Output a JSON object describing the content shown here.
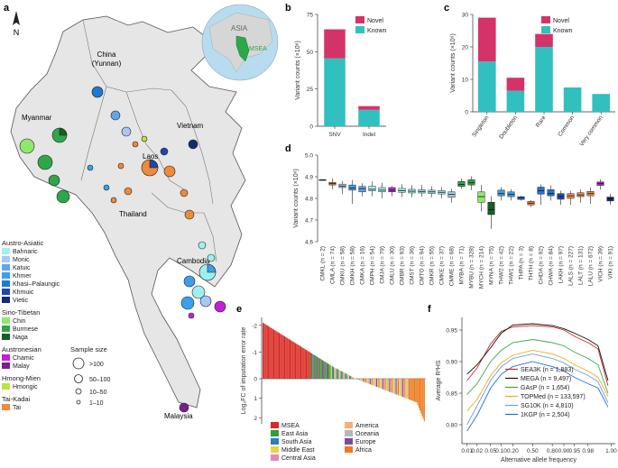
{
  "figure": {
    "panel_labels": [
      "a",
      "b",
      "c",
      "d",
      "e",
      "f"
    ],
    "map": {
      "compass": "N",
      "country_labels": [
        "China (Yunnan)",
        "Myanmar",
        "Vietnam",
        "Laos",
        "Thailand",
        "Cambodia",
        "Malaysia"
      ],
      "globe_labels": [
        "ASIA",
        "MSEA"
      ],
      "legend_groups": [
        {
          "family": "Austro-Asiatic",
          "items": [
            {
              "label": "Bahnaric",
              "color": "#9ef0ee"
            },
            {
              "label": "Monic",
              "color": "#a8c8f0"
            },
            {
              "label": "Katuic",
              "color": "#5fa6e8"
            },
            {
              "label": "Khmer",
              "color": "#3aa0ea"
            },
            {
              "label": "Khasi–Palaungic",
              "color": "#1f78d1"
            },
            {
              "label": "Khmuic",
              "color": "#2246a8"
            },
            {
              "label": "Vietic",
              "color": "#162a72"
            }
          ]
        },
        {
          "family": "Sino-Tibetan",
          "items": [
            {
              "label": "Chin",
              "color": "#8ee86e"
            },
            {
              "label": "Burmese",
              "color": "#2ea64a"
            },
            {
              "label": "Naga",
              "color": "#175e24"
            }
          ]
        },
        {
          "family": "Austronesian",
          "items": [
            {
              "label": "Chamic",
              "color": "#c020d8"
            },
            {
              "label": "Malay",
              "color": "#7a1f8e"
            }
          ]
        },
        {
          "family": "Hmong-Mien",
          "items": [
            {
              "label": "Hmongic",
              "color": "#b9e63a"
            }
          ]
        },
        {
          "family": "Tai-Kadai",
          "items": [
            {
              "label": "Tai",
              "color": "#ee8a3a"
            }
          ]
        }
      ],
      "sample_size_title": "Sample size",
      "sample_size_labels": [
        ">100",
        "50–100",
        "10–50",
        "1–10"
      ]
    }
  },
  "chart_data": [
    {
      "panel": "b",
      "type": "bar",
      "stacked": true,
      "categories": [
        "SNV",
        "Indel"
      ],
      "series": [
        {
          "name": "Known",
          "color": "#31c0c0",
          "values": [
            45.5,
            11
          ]
        },
        {
          "name": "Novel",
          "color": "#d4336a",
          "values": [
            19.5,
            2.5
          ]
        }
      ],
      "ylabel": "Variant counts (×10⁶)",
      "ylim": [
        0,
        75
      ],
      "yticks": [
        0,
        25,
        50,
        75
      ]
    },
    {
      "panel": "c",
      "type": "bar",
      "stacked": true,
      "categories": [
        "Singleton",
        "Doubleton",
        "Rare",
        "Common",
        "Very common"
      ],
      "series": [
        {
          "name": "Known",
          "color": "#31c0c0",
          "values": [
            15.5,
            6.5,
            20,
            7.5,
            5.5
          ]
        },
        {
          "name": "Novel",
          "color": "#d4336a",
          "values": [
            13.5,
            4,
            4,
            0,
            0
          ]
        }
      ],
      "ylabel": "Variant counts (×10⁶)",
      "ylim": [
        0,
        30
      ],
      "yticks": [
        0,
        10,
        20,
        30
      ]
    },
    {
      "panel": "d",
      "type": "box",
      "ylabel": "Variant counts (×10⁶)",
      "ylim": [
        4.6,
        5.0
      ],
      "yticks": [
        4.6,
        4.7,
        4.8,
        4.9,
        5.0
      ],
      "groups": [
        {
          "label": "CMKL (n = 2)",
          "color": "#b9e63a",
          "q1": 4.883,
          "med": 4.885,
          "q3": 4.887,
          "lo": 4.882,
          "hi": 4.888
        },
        {
          "label": "CMLA (n = 74)",
          "color": "#ee8a3a",
          "q1": 4.862,
          "med": 4.868,
          "q3": 4.874,
          "lo": 4.842,
          "hi": 4.892
        },
        {
          "label": "CMKU (n = 58)",
          "color": "#a8c8f0",
          "q1": 4.85,
          "med": 4.857,
          "q3": 4.866,
          "lo": 4.82,
          "hi": 4.88
        },
        {
          "label": "CMKH (n = 58)",
          "color": "#3aa0ea",
          "q1": 4.838,
          "med": 4.848,
          "q3": 4.862,
          "lo": 4.775,
          "hi": 4.885
        },
        {
          "label": "CMKA (n = 16)",
          "color": "#5fa6e8",
          "q1": 4.83,
          "med": 4.845,
          "q3": 4.855,
          "lo": 4.81,
          "hi": 4.87
        },
        {
          "label": "CMPH (n = 54)",
          "color": "#9ef0ee",
          "q1": 4.835,
          "med": 4.842,
          "q3": 4.856,
          "lo": 4.81,
          "hi": 4.878
        },
        {
          "label": "CMJA (n = 79)",
          "color": "#9ef0ee",
          "q1": 4.83,
          "med": 4.838,
          "q3": 4.85,
          "lo": 4.8,
          "hi": 4.872
        },
        {
          "label": "CMLU (n = 30)",
          "color": "#c020d8",
          "q1": 4.83,
          "med": 4.838,
          "q3": 4.85,
          "lo": 4.81,
          "hi": 4.858
        },
        {
          "label": "CMBR (n = 93)",
          "color": "#9ef0ee",
          "q1": 4.828,
          "med": 4.835,
          "q3": 4.846,
          "lo": 4.805,
          "hi": 4.866
        },
        {
          "label": "CMST (n = 36)",
          "color": "#9ef0ee",
          "q1": 4.825,
          "med": 4.833,
          "q3": 4.842,
          "lo": 4.805,
          "hi": 4.862
        },
        {
          "label": "CMTO (n = 94)",
          "color": "#9ef0ee",
          "q1": 4.825,
          "med": 4.832,
          "q3": 4.84,
          "lo": 4.808,
          "hi": 4.862
        },
        {
          "label": "CMKR (n = 55)",
          "color": "#9ef0ee",
          "q1": 4.822,
          "med": 4.83,
          "q3": 4.838,
          "lo": 4.805,
          "hi": 4.856
        },
        {
          "label": "CMKE (n = 37)",
          "color": "#9ef0ee",
          "q1": 4.82,
          "med": 4.828,
          "q3": 4.836,
          "lo": 4.8,
          "hi": 4.852
        },
        {
          "label": "CMME (n = 68)",
          "color": "#a8c8f0",
          "q1": 4.805,
          "med": 4.818,
          "q3": 4.83,
          "lo": 4.78,
          "hi": 4.845
        },
        {
          "label": "MYBA (n = 71)",
          "color": "#2ea64a",
          "q1": 4.855,
          "med": 4.865,
          "q3": 4.878,
          "lo": 4.845,
          "hi": 4.892
        },
        {
          "label": "MYBU (n = 328)",
          "color": "#2ea64a",
          "q1": 4.862,
          "med": 4.872,
          "q3": 4.886,
          "lo": 4.838,
          "hi": 4.902
        },
        {
          "label": "MYCH (n = 214)",
          "color": "#8ee86e",
          "q1": 4.782,
          "med": 4.808,
          "q3": 4.83,
          "lo": 4.74,
          "hi": 4.862
        },
        {
          "label": "MYNA (n = 75)",
          "color": "#175e24",
          "q1": 4.725,
          "med": 4.748,
          "q3": 4.782,
          "lo": 4.66,
          "hi": 4.81
        },
        {
          "label": "THW2 (n = 42)",
          "color": "#3aa0ea",
          "q1": 4.812,
          "med": 4.822,
          "q3": 4.838,
          "lo": 4.79,
          "hi": 4.852
        },
        {
          "label": "THW1 (n = 22)",
          "color": "#3aa0ea",
          "q1": 4.808,
          "med": 4.818,
          "q3": 4.83,
          "lo": 4.79,
          "hi": 4.842
        },
        {
          "label": "THPA (n = 3)",
          "color": "#1f78d1",
          "q1": 4.795,
          "med": 4.802,
          "q3": 4.808,
          "lo": 4.79,
          "hi": 4.812
        },
        {
          "label": "THTH (n = 8)",
          "color": "#ee8a3a",
          "q1": 4.77,
          "med": 4.778,
          "q3": 4.786,
          "lo": 4.76,
          "hi": 4.792
        },
        {
          "label": "CHDA (n = 92)",
          "color": "#1f78d1",
          "q1": 4.82,
          "med": 4.835,
          "q3": 4.852,
          "lo": 4.77,
          "hi": 4.865
        },
        {
          "label": "CHWA (n = 84)",
          "color": "#1f78d1",
          "q1": 4.812,
          "med": 4.822,
          "q3": 4.84,
          "lo": 4.79,
          "hi": 4.86
        },
        {
          "label": "LAKH (n = 97)",
          "color": "#2246a8",
          "q1": 4.796,
          "med": 4.808,
          "q3": 4.822,
          "lo": 4.77,
          "hi": 4.836
        },
        {
          "label": "LALS (n = 227)",
          "color": "#ee8a3a",
          "q1": 4.8,
          "med": 4.812,
          "q3": 4.822,
          "lo": 4.77,
          "hi": 4.835
        },
        {
          "label": "LALT (n = 131)",
          "color": "#ee8a3a",
          "q1": 4.808,
          "med": 4.816,
          "q3": 4.826,
          "lo": 4.78,
          "hi": 4.842
        },
        {
          "label": "LALU (n = 672)",
          "color": "#ee8a3a",
          "q1": 4.812,
          "med": 4.822,
          "q3": 4.832,
          "lo": 4.775,
          "hi": 4.85
        },
        {
          "label": "VICH (n = 39)",
          "color": "#c020d8",
          "q1": 4.86,
          "med": 4.868,
          "q3": 4.876,
          "lo": 4.84,
          "hi": 4.888
        },
        {
          "label": "VIKI (n = 91)",
          "color": "#162a72",
          "q1": 4.788,
          "med": 4.798,
          "q3": 4.806,
          "lo": 4.77,
          "hi": 4.822
        }
      ]
    },
    {
      "panel": "e",
      "type": "bar",
      "ylabel": "Log₂FC of imputation error rate",
      "ylim": [
        2.3,
        -2.3
      ],
      "yticks_top": [
        -2,
        -1,
        0
      ],
      "yticks_bottom": [
        1,
        2
      ],
      "legend": [
        {
          "label": "MSEA",
          "color": "#d72a22"
        },
        {
          "label": "East Asia",
          "color": "#2f9d3a"
        },
        {
          "label": "South Asia",
          "color": "#2a7fbf"
        },
        {
          "label": "Middle East",
          "color": "#e8d340"
        },
        {
          "label": "Central Asia",
          "color": "#e58ab8"
        },
        {
          "label": "America",
          "color": "#f4b07a"
        },
        {
          "label": "Oceania",
          "color": "#b6b6b6"
        },
        {
          "label": "Europe",
          "color": "#7a4b9e"
        },
        {
          "label": "Africa",
          "color": "#ee7a1c"
        }
      ]
    },
    {
      "panel": "f",
      "type": "line",
      "xlabel": "Alternative allele frequency",
      "ylabel": "Average R²HS",
      "xscale": "logit",
      "x": [
        0.01,
        0.02,
        0.05,
        0.1,
        0.2,
        0.5,
        0.8,
        0.9,
        0.95,
        0.98,
        0.99,
        0.995
      ],
      "xticks": [
        0.01,
        0.02,
        0.05,
        0.1,
        0.2,
        0.5,
        0.8,
        0.9,
        0.95,
        0.98,
        1.0
      ],
      "xtick_labels": [
        "0.01",
        "0.02",
        "0.05",
        "0.10",
        "0.20",
        "0.50",
        "0.80",
        "0.90",
        "0.95",
        "0.98",
        "1.00"
      ],
      "ylim": [
        0.77,
        0.97
      ],
      "yticks": [
        0.8,
        0.85,
        0.9,
        0.95
      ],
      "series": [
        {
          "name": "SEA3K (n = 1,883)",
          "color": "#cc2b2b",
          "values": [
            0.87,
            0.89,
            0.928,
            0.948,
            0.955,
            0.957,
            0.955,
            0.95,
            0.94,
            0.93,
            0.92,
            0.862
          ]
        },
        {
          "name": "MEGA (n = 9,497)",
          "color": "#111111",
          "values": [
            0.88,
            0.895,
            0.922,
            0.945,
            0.958,
            0.96,
            0.957,
            0.952,
            0.945,
            0.935,
            0.925,
            0.87
          ]
        },
        {
          "name": "GAsP (n = 1,654)",
          "color": "#3aa84a",
          "values": [
            0.848,
            0.865,
            0.9,
            0.918,
            0.93,
            0.935,
            0.93,
            0.925,
            0.915,
            0.905,
            0.895,
            0.85
          ]
        },
        {
          "name": "TOPMed (n = 133,597)",
          "color": "#e8b020",
          "values": [
            0.822,
            0.84,
            0.878,
            0.898,
            0.91,
            0.918,
            0.912,
            0.905,
            0.895,
            0.885,
            0.875,
            0.845
          ]
        },
        {
          "name": "SG10K (n = 4,810)",
          "color": "#6aa0e0",
          "values": [
            0.8,
            0.83,
            0.87,
            0.892,
            0.905,
            0.912,
            0.905,
            0.898,
            0.888,
            0.878,
            0.868,
            0.835
          ]
        },
        {
          "name": "1KGP (n = 2,504)",
          "color": "#2e6bd0",
          "values": [
            0.79,
            0.815,
            0.858,
            0.88,
            0.892,
            0.9,
            0.892,
            0.885,
            0.875,
            0.865,
            0.858,
            0.828
          ]
        }
      ]
    }
  ]
}
